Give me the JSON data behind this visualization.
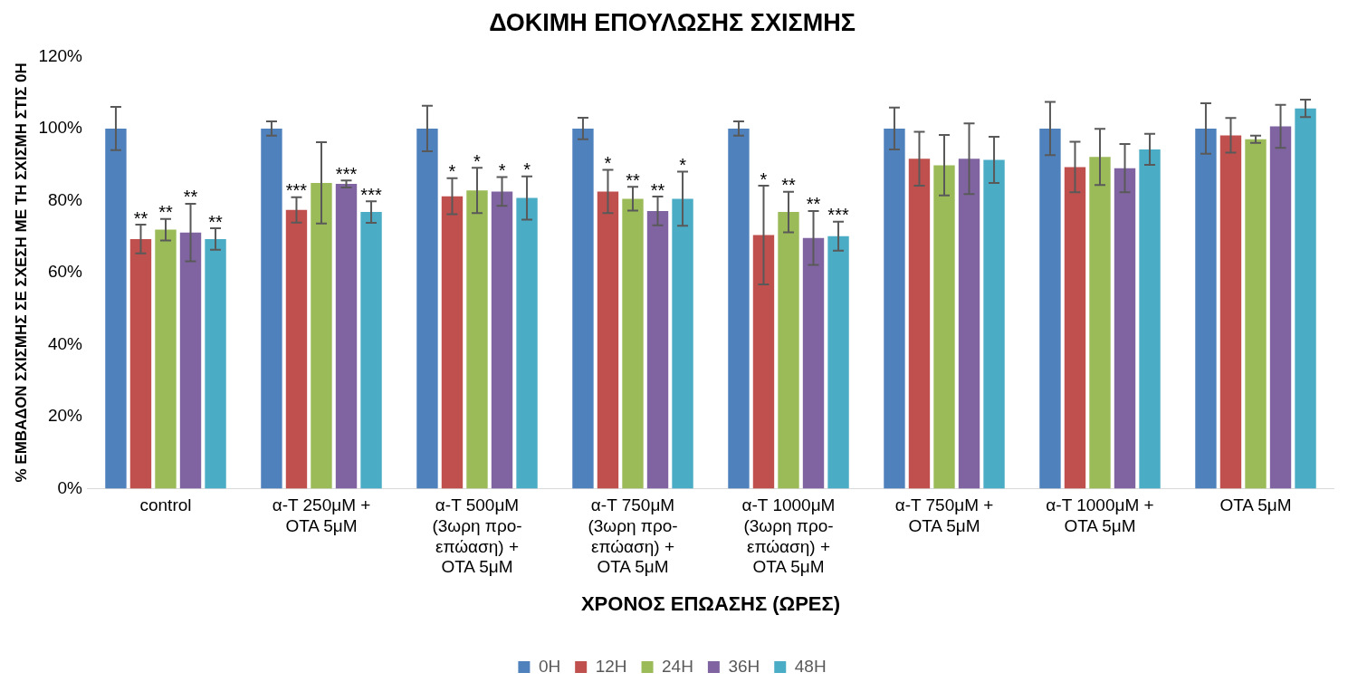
{
  "chart_data": {
    "type": "bar",
    "title": "ΔΟΚΙΜΗ ΕΠΟΥΛΩΣΗΣ ΣΧΙΣΜΗΣ",
    "xlabel": "ΧΡΟΝΟΣ ΕΠΩΑΣΗΣ (ΩΡΕΣ)",
    "ylabel": "% ΕΜΒΑΔΟΝ ΣΧΙΣΜΗΣ ΣΕ ΣΧΕΣΗ ΜΕ ΤΗ ΣΧΙΣΜΗ ΣΤΙΣ 0Η",
    "categories": [
      "control",
      "α-T 250μM + OTA 5μM",
      "α-T 500μM (3ωρη προ-επώαση) + OTA 5μM",
      "α-T 750μM (3ωρη προ-επώαση) + OTA 5μM",
      "α-T 1000μM (3ωρη προ-επώαση) + OTA 5μM",
      "α-T 750μM + OTA 5μM",
      "α-T 1000μM + OTA 5μM",
      "OTA 5μM"
    ],
    "series": [
      {
        "name": "0H",
        "color": "#4f81bd",
        "values": [
          100,
          100,
          100,
          100,
          100,
          100,
          100,
          100
        ],
        "errors": [
          6,
          2,
          6.3,
          3,
          2,
          5.8,
          7.4,
          7
        ],
        "value_labels": [
          null,
          null,
          null,
          null,
          null,
          null,
          null,
          null
        ]
      },
      {
        "name": "12H",
        "color": "#c0504d",
        "values": [
          69.3,
          77.4,
          81.2,
          82.5,
          70.4,
          91.6,
          89.3,
          98.1
        ],
        "errors": [
          4,
          3.5,
          5,
          6,
          13.7,
          7.5,
          7,
          4.8
        ],
        "value_labels": [
          "**",
          "***",
          "*",
          "*",
          "*",
          null,
          null,
          null
        ]
      },
      {
        "name": "24H",
        "color": "#9bbb59",
        "values": [
          71.9,
          84.9,
          82.8,
          80.5,
          76.8,
          89.8,
          92.1,
          97
        ],
        "errors": [
          3,
          11.3,
          6.3,
          3.3,
          5.6,
          8.4,
          7.8,
          1
        ],
        "value_labels": [
          "**",
          null,
          "*",
          "**",
          "**",
          null,
          null,
          null
        ]
      },
      {
        "name": "36H",
        "color": "#8064a2",
        "values": [
          71.1,
          84.6,
          82.5,
          77.1,
          69.6,
          91.6,
          89,
          100.6
        ],
        "errors": [
          8,
          1,
          4,
          4,
          7.5,
          9.8,
          6.7,
          6
        ],
        "value_labels": [
          "**",
          "***",
          "*",
          "**",
          "**",
          null,
          null,
          null
        ]
      },
      {
        "name": "48H",
        "color": "#4bacc6",
        "values": [
          69.3,
          76.8,
          80.7,
          80.5,
          70.1,
          91.3,
          94.2,
          105.6
        ],
        "errors": [
          3,
          3,
          6,
          7.5,
          4,
          6.4,
          4.3,
          2.4
        ],
        "value_labels": [
          "**",
          "***",
          "*",
          "*",
          "***",
          null,
          null,
          null
        ]
      }
    ],
    "ylim": [
      0,
      120
    ],
    "yticks": [
      {
        "value": 0,
        "label": "0%"
      },
      {
        "value": 20,
        "label": "20%"
      },
      {
        "value": 40,
        "label": "40%"
      },
      {
        "value": 60,
        "label": "60%"
      },
      {
        "value": 80,
        "label": "80%"
      },
      {
        "value": 100,
        "label": "100%"
      },
      {
        "value": 120,
        "label": "120%"
      }
    ],
    "grid": false,
    "legend": "bottom"
  }
}
